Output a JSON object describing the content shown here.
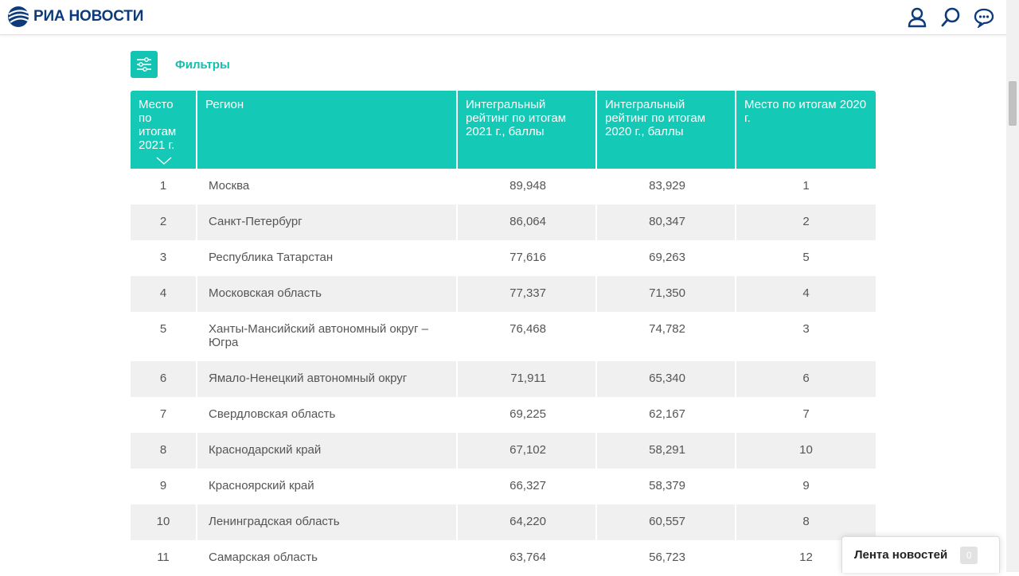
{
  "header": {
    "logo_text": "РИА НОВОСТИ",
    "brand_color": "#0d3b7a",
    "icons": [
      "user-icon",
      "search-icon",
      "chat-icon"
    ]
  },
  "filters": {
    "label": "Фильтры",
    "icon": "filter-sliders-icon",
    "accent": "#14c9b5"
  },
  "table": {
    "columns": [
      "Место по итогам 2021 г.",
      "Регион",
      "Интегральный рейтинг по итогам 2021 г., баллы",
      "Интегральный рейтинг по итогам 2020 г., баллы",
      "Место по итогам 2020 г."
    ],
    "rows": [
      [
        "1",
        "Москва",
        "89,948",
        "83,929",
        "1"
      ],
      [
        "2",
        "Санкт-Петербург",
        "86,064",
        "80,347",
        "2"
      ],
      [
        "3",
        "Республика Татарстан",
        "77,616",
        "69,263",
        "5"
      ],
      [
        "4",
        "Московская область",
        "77,337",
        "71,350",
        "4"
      ],
      [
        "5",
        "Ханты-Мансийский автономный округ – Югра",
        "76,468",
        "74,782",
        "3"
      ],
      [
        "6",
        "Ямало-Ненецкий автономный округ",
        "71,911",
        "65,340",
        "6"
      ],
      [
        "7",
        "Свердловская область",
        "69,225",
        "62,167",
        "7"
      ],
      [
        "8",
        "Краснодарский край",
        "67,102",
        "58,291",
        "10"
      ],
      [
        "9",
        "Красноярский край",
        "66,327",
        "58,379",
        "9"
      ],
      [
        "10",
        "Ленинградская область",
        "64,220",
        "60,557",
        "8"
      ],
      [
        "11",
        "Самарская область",
        "63,764",
        "56,723",
        "12"
      ]
    ]
  },
  "news_feed": {
    "label": "Лента новостей",
    "count": "0"
  }
}
